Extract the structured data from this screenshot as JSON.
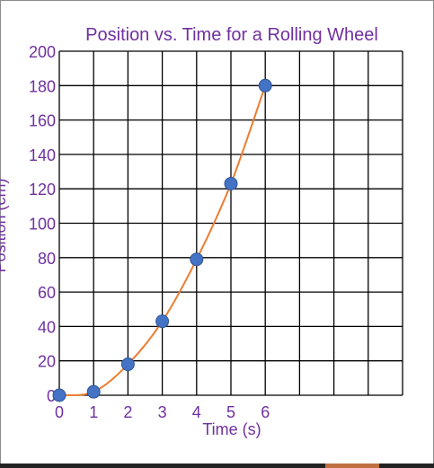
{
  "chart_data": {
    "type": "scatter",
    "title": "Position vs. Time for a Rolling Wheel",
    "xlabel": "Time (s)",
    "ylabel": "Position (cm)",
    "x_ticks": [
      "0",
      "1",
      "2",
      "3",
      "4",
      "5",
      "6"
    ],
    "y_ticks": [
      "0",
      "20",
      "40",
      "60",
      "80",
      "100",
      "120",
      "140",
      "160",
      "180",
      "200"
    ],
    "xlim": [
      0,
      10
    ],
    "ylim": [
      0,
      200
    ],
    "grid": true,
    "series": [
      {
        "x": [
          0,
          1,
          2,
          3,
          4,
          5,
          6
        ],
        "y": [
          0,
          2,
          18,
          43,
          79,
          123,
          180
        ],
        "marker_color": "#4472c4",
        "trend_color": "#ed7d31"
      }
    ]
  }
}
